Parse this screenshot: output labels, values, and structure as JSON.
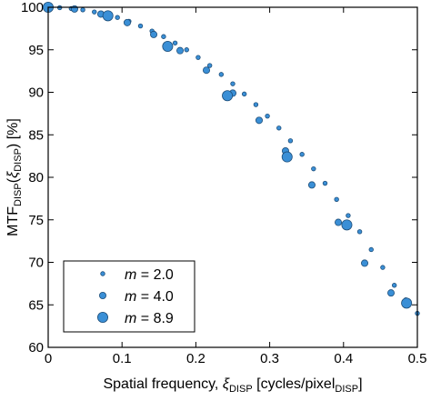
{
  "chart_data": {
    "type": "scatter",
    "xlabel": {
      "prefix": "Spatial frequency, ",
      "symbol": "ξ",
      "symbol_sub": "DISP",
      "unit_open": " [cycles/pixel",
      "unit_sub": "DISP",
      "unit_close": "]"
    },
    "ylabel": {
      "prefix": "MTF",
      "prefix_sub": "DISP",
      "open": "(",
      "symbol": "ξ",
      "symbol_sub": "DISP",
      "close": ") [%]"
    },
    "xlim": [
      0,
      0.5
    ],
    "ylim": [
      60,
      100
    ],
    "x_ticks": [
      {
        "value": 0,
        "label": "0"
      },
      {
        "value": 0.1,
        "label": "0.1"
      },
      {
        "value": 0.2,
        "label": "0.2"
      },
      {
        "value": 0.3,
        "label": "0.3"
      },
      {
        "value": 0.4,
        "label": "0.4"
      },
      {
        "value": 0.5,
        "label": "0.5"
      }
    ],
    "y_ticks": [
      {
        "value": 60,
        "label": "60"
      },
      {
        "value": 65,
        "label": "65"
      },
      {
        "value": 70,
        "label": "70"
      },
      {
        "value": 75,
        "label": "75"
      },
      {
        "value": 80,
        "label": "80"
      },
      {
        "value": 85,
        "label": "85"
      },
      {
        "value": 90,
        "label": "90"
      },
      {
        "value": 95,
        "label": "95"
      },
      {
        "value": 100,
        "label": "100"
      }
    ],
    "marker_color": "#3a8fd6",
    "marker_edge": "#1f4f7a",
    "legend_position": "lower-left",
    "series": [
      {
        "name": "m = 2.0",
        "name_var": "m",
        "name_rest": " = 2.0",
        "marker_size": "small",
        "x": [
          0,
          0.0156,
          0.0312,
          0.0469,
          0.0625,
          0.0781,
          0.0938,
          0.1094,
          0.125,
          0.1406,
          0.1563,
          0.1719,
          0.1875,
          0.2031,
          0.2188,
          0.2344,
          0.25,
          0.2656,
          0.2813,
          0.2969,
          0.3125,
          0.3281,
          0.3438,
          0.3594,
          0.375,
          0.3906,
          0.4063,
          0.4219,
          0.4375,
          0.4531,
          0.4688,
          0.4844,
          0.5
        ],
        "y": [
          100,
          99.95,
          99.85,
          99.7,
          99.45,
          99.15,
          98.8,
          98.35,
          97.8,
          97.2,
          96.55,
          95.8,
          95.0,
          94.1,
          93.15,
          92.1,
          91.0,
          89.8,
          88.55,
          87.2,
          85.8,
          84.3,
          82.7,
          81.0,
          79.3,
          77.4,
          75.5,
          73.6,
          71.5,
          69.4,
          67.3,
          65.6,
          64.0
        ]
      },
      {
        "name": "m = 4.0",
        "name_var": "m",
        "name_rest": " = 4.0",
        "marker_size": "medium",
        "x": [
          0,
          0.0357,
          0.0714,
          0.1071,
          0.1429,
          0.1786,
          0.2143,
          0.25,
          0.2857,
          0.3214,
          0.3571,
          0.3929,
          0.4286,
          0.4643
        ],
        "y": [
          100,
          99.8,
          99.2,
          98.2,
          96.8,
          94.9,
          92.6,
          89.9,
          86.7,
          83.1,
          79.1,
          74.7,
          69.9,
          66.4
        ]
      },
      {
        "name": "m = 8.9",
        "name_var": "m",
        "name_rest": " = 8.9",
        "marker_size": "large",
        "x": [
          0,
          0.0809,
          0.1618,
          0.2427,
          0.3236,
          0.4045,
          0.4854
        ],
        "y": [
          100,
          99.0,
          95.4,
          89.6,
          82.4,
          74.4,
          65.2
        ]
      }
    ]
  }
}
